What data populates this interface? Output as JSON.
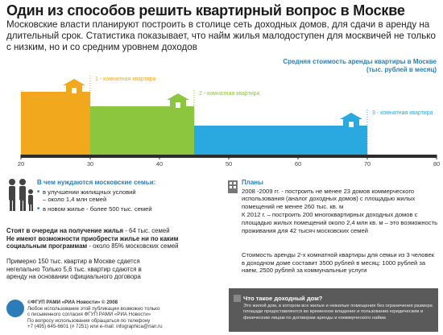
{
  "title": "Один из способов решить квартирный вопрос в Москве",
  "lead": "Московские власти планируют построить в столице сеть доходных домов, для сдачи в аренду на длительный срок. Статистика показывает, что найм жилья малодоступен для москвичей не только с низким, но и со средним уровнем доходов",
  "chart_data": {
    "type": "bar",
    "title": "Средняя стоимость аренды квартиры в Москве (тыс. рублей в месяц)",
    "x_ticks": [
      20,
      30,
      40,
      50,
      60,
      70,
      80
    ],
    "xlim": [
      20,
      80
    ],
    "series": [
      {
        "name": "1 - комнатная квартира",
        "value": 30,
        "color": "#f2a81d"
      },
      {
        "name": "2 - комнатная квартира",
        "value": 45,
        "color": "#8cc63f"
      },
      {
        "name": "3 - комнатная квартира",
        "value": 70,
        "color": "#29a9e0"
      }
    ]
  },
  "needs": {
    "title": "В чем нуждаются московские семьи:",
    "items": [
      "в улучшении жилищных условий – около 1,4 млн семей",
      "в новом жилье - более 500 тыс. семей"
    ],
    "queue_label": "Стоят в очереди на получение жилья",
    "queue_value": " - 64 тыс. семей",
    "no_buy_label": "Не имеют возможности приобрести жилье ни по каким социальным программам",
    "no_buy_value": " - около 85% московских семей",
    "rent_note": "Примерно 150 тыс. квартир в Москве сдается негелально Только 5,6 тыс. квартир сдаются в аренду на основании официального договора"
  },
  "plans": {
    "title": "Планы",
    "p1": "2008 -2009 гг. - построить не менее 23 домов коммерческого использования (аналог доходных домов) с площадью жилых помещений не менее 260 тыс. кв. м",
    "p2": "К 2012 г. – построить 200 многоквартирных доходных домов с площадью жилых помещений около 2,4 млн кв. м – это возможность проживания для  42 тысяч московских семей",
    "p3": "Стоимость аренды 2-х комнатной квартиры для семьи из 3 человек в доходном доме составит 3500 рублей в месяц: 1000 рублей за наем, 2500 рублей за коммунальные услуги"
  },
  "footer": {
    "copy": "©ФГУП РАМИ «РИА Новости» © 2008",
    "line1": "Любое использование этой публикации возможно только",
    "line2": "с письменного согласия ФГУП РАМИ «РИА Новости»",
    "line3": "По вопросу использования обращаться по телефону",
    "line4": "+7 (495) 645-6601 (# 7251) или e-mail: infographica@rian.ru"
  },
  "info_box": {
    "title": "Что такое доходный дом?",
    "text": "Это жилой дом, в котором все жилые и нежилые помещения без ограничения размера площади предоставляются во временное владение и пользование юридическим и физическим лицам по договорам аренды и коммерческого найма"
  }
}
